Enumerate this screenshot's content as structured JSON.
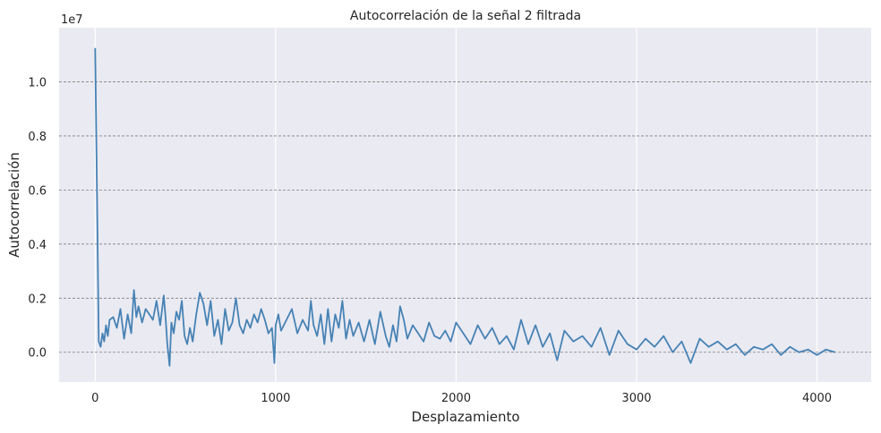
{
  "chart_data": {
    "type": "line",
    "title": "Autocorrelación de la señal 2 filtrada",
    "xlabel": "Desplazamiento",
    "ylabel": "Autocorrelación",
    "y_offset_text": "1e7",
    "xlim": [
      -200,
      4300
    ],
    "ylim": [
      -0.11,
      1.2
    ],
    "x_ticks": [
      0,
      1000,
      2000,
      3000,
      4000
    ],
    "x_tick_labels": [
      "0",
      "1000",
      "2000",
      "3000",
      "4000"
    ],
    "y_ticks": [
      0.0,
      0.2,
      0.4,
      0.6,
      0.8,
      1.0
    ],
    "y_tick_labels": [
      "0.0",
      "0.2",
      "0.4",
      "0.6",
      "0.8",
      "1.0"
    ],
    "grid": {
      "x": "solid-white",
      "y": "dashed-gray"
    },
    "colors": {
      "background": "#eaeaf2",
      "line": "#4682b4",
      "y_grid": "#808080",
      "x_grid": "#ffffff"
    },
    "series": [
      {
        "x": [
          0,
          10,
          20,
          30,
          40,
          50,
          60,
          70,
          80,
          100,
          120,
          140,
          160,
          180,
          200,
          215,
          228,
          240,
          260,
          280,
          300,
          320,
          340,
          360,
          380,
          390,
          400,
          412,
          422,
          435,
          450,
          465,
          480,
          495,
          510,
          525,
          540,
          560,
          580,
          600,
          620,
          640,
          660,
          680,
          700,
          720,
          740,
          760,
          780,
          800,
          820,
          840,
          860,
          880,
          900,
          920,
          940,
          960,
          980,
          993,
          1000,
          1015,
          1030,
          1060,
          1090,
          1120,
          1150,
          1180,
          1195,
          1210,
          1230,
          1250,
          1270,
          1290,
          1310,
          1330,
          1350,
          1370,
          1390,
          1410,
          1430,
          1460,
          1490,
          1520,
          1550,
          1580,
          1610,
          1630,
          1650,
          1670,
          1690,
          1710,
          1730,
          1760,
          1790,
          1820,
          1850,
          1880,
          1910,
          1940,
          1970,
          2000,
          2040,
          2080,
          2120,
          2160,
          2200,
          2240,
          2280,
          2320,
          2360,
          2400,
          2440,
          2480,
          2520,
          2560,
          2600,
          2650,
          2700,
          2750,
          2800,
          2850,
          2900,
          2950,
          3000,
          3050,
          3100,
          3150,
          3200,
          3250,
          3300,
          3350,
          3400,
          3450,
          3500,
          3550,
          3600,
          3650,
          3700,
          3750,
          3800,
          3850,
          3900,
          3950,
          4000,
          4050,
          4100
        ],
        "y": [
          1.125,
          0.6,
          0.04,
          0.02,
          0.07,
          0.04,
          0.1,
          0.06,
          0.12,
          0.13,
          0.09,
          0.16,
          0.05,
          0.14,
          0.07,
          0.23,
          0.13,
          0.17,
          0.11,
          0.16,
          0.14,
          0.12,
          0.19,
          0.1,
          0.21,
          0.13,
          0.03,
          -0.05,
          0.11,
          0.07,
          0.15,
          0.12,
          0.19,
          0.06,
          0.03,
          0.09,
          0.04,
          0.14,
          0.22,
          0.18,
          0.1,
          0.19,
          0.06,
          0.12,
          0.03,
          0.16,
          0.08,
          0.11,
          0.2,
          0.1,
          0.07,
          0.12,
          0.09,
          0.14,
          0.11,
          0.16,
          0.12,
          0.07,
          0.09,
          -0.04,
          0.1,
          0.14,
          0.08,
          0.12,
          0.16,
          0.07,
          0.12,
          0.08,
          0.19,
          0.1,
          0.06,
          0.14,
          0.03,
          0.16,
          0.04,
          0.14,
          0.09,
          0.19,
          0.05,
          0.12,
          0.06,
          0.11,
          0.04,
          0.12,
          0.03,
          0.15,
          0.06,
          0.02,
          0.1,
          0.04,
          0.17,
          0.12,
          0.05,
          0.1,
          0.07,
          0.04,
          0.11,
          0.06,
          0.05,
          0.08,
          0.04,
          0.11,
          0.07,
          0.03,
          0.1,
          0.05,
          0.09,
          0.03,
          0.06,
          0.01,
          0.12,
          0.03,
          0.1,
          0.02,
          0.07,
          -0.03,
          0.08,
          0.04,
          0.06,
          0.02,
          0.09,
          -0.01,
          0.08,
          0.03,
          0.01,
          0.05,
          0.02,
          0.06,
          0.0,
          0.04,
          -0.04,
          0.05,
          0.02,
          0.04,
          0.01,
          0.03,
          -0.01,
          0.02,
          0.01,
          0.03,
          -0.01,
          0.02,
          0.0,
          0.01,
          -0.01,
          0.01,
          0.0
        ]
      }
    ]
  }
}
